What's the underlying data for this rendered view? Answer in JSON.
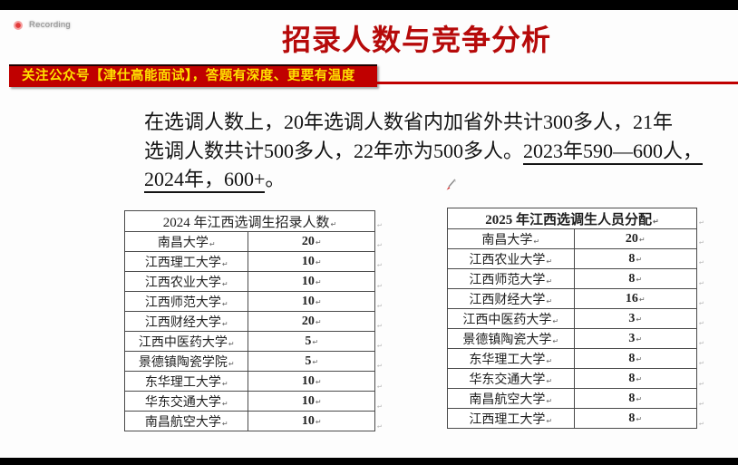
{
  "recording": {
    "label": "Recording"
  },
  "title": "招录人数与竞争分析",
  "banner": {
    "text": "关注公众号【津仕高能面试】，答题有深度、更要有温度"
  },
  "paragraph": {
    "line1": "在选调人数上，20年选调人数省内加省外共计300多人，21年",
    "line2_normal": "选调人数共计500多人，22年亦为500多人。",
    "line2_underline": "2023年590—600人，",
    "line3_underline": "2024年，600+",
    "line3_tail": "。"
  },
  "tables": {
    "paragraph_mark": "↵",
    "left": {
      "title": "2024 年江西选调生招录人数",
      "rows": [
        {
          "name": "南昌大学",
          "value": "20"
        },
        {
          "name": "江西理工大学",
          "value": "10"
        },
        {
          "name": "江西农业大学",
          "value": "10"
        },
        {
          "name": "江西师范大学",
          "value": "10"
        },
        {
          "name": "江西财经大学",
          "value": "20"
        },
        {
          "name": "江西中医药大学",
          "value": "5"
        },
        {
          "name": "景德镇陶瓷学院",
          "value": "5"
        },
        {
          "name": "东华理工大学",
          "value": "10"
        },
        {
          "name": "华东交通大学",
          "value": "10"
        },
        {
          "name": "南昌航空大学",
          "value": "10"
        }
      ]
    },
    "right": {
      "title": "2025 年江西选调生人员分配",
      "rows": [
        {
          "name": "南昌大学",
          "value": "20"
        },
        {
          "name": "江西农业大学",
          "value": "8"
        },
        {
          "name": "江西师范大学",
          "value": "8"
        },
        {
          "name": "江西财经大学",
          "value": "16"
        },
        {
          "name": "江西中医药大学",
          "value": "3"
        },
        {
          "name": "景德镇陶瓷大学",
          "value": "3"
        },
        {
          "name": "东华理工大学",
          "value": "8"
        },
        {
          "name": "华东交通大学",
          "value": "8"
        },
        {
          "name": "南昌航空大学",
          "value": "8"
        },
        {
          "name": "江西理工大学",
          "value": "8"
        }
      ]
    }
  },
  "colors": {
    "accent_red": "#c00000",
    "banner_yellow": "#ffe100",
    "title_red": "#b60a0a"
  }
}
